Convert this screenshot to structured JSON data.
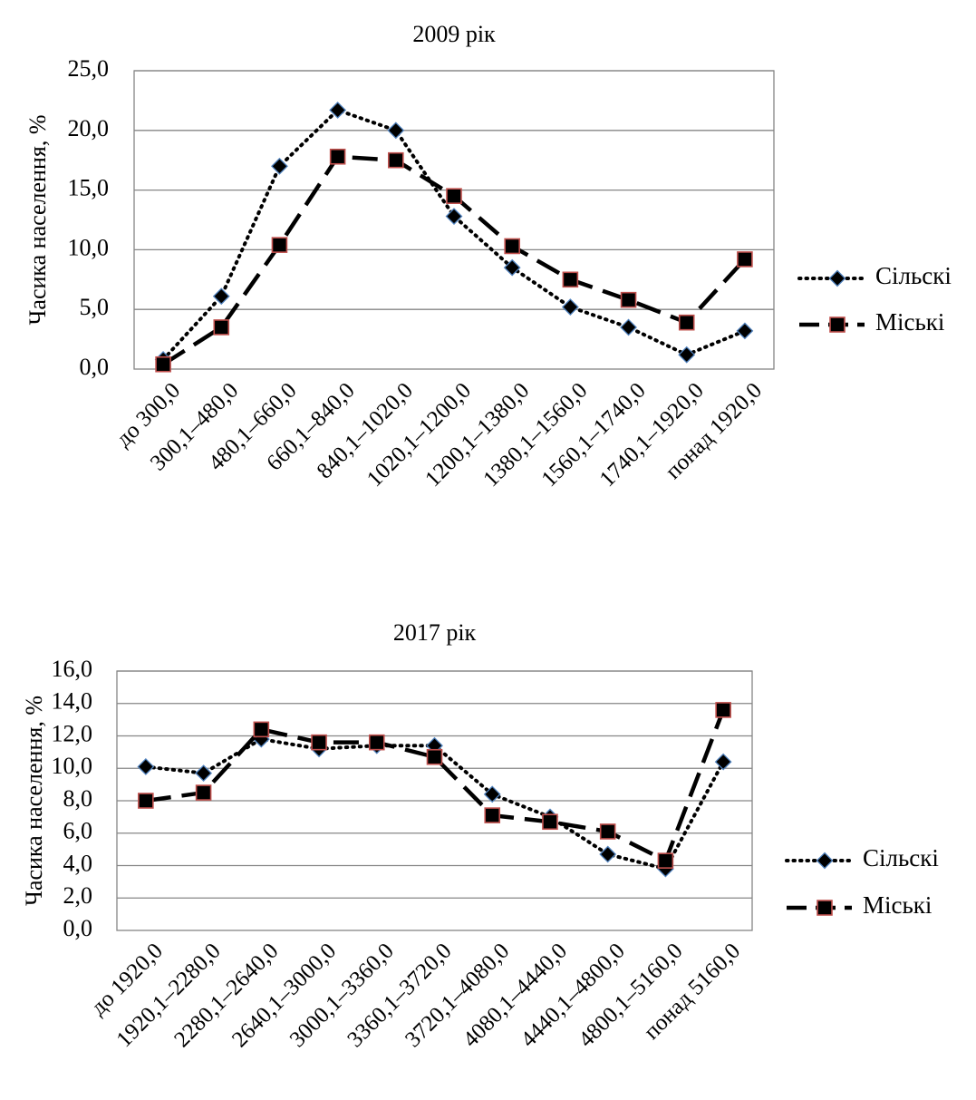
{
  "chart_data": [
    {
      "type": "line",
      "title": "2009 рік",
      "ylabel": "Часика населення, %",
      "xlabel": "",
      "ylim": [
        0,
        25
      ],
      "yticks": [
        "0,0",
        "5,0",
        "10,0",
        "15,0",
        "20,0",
        "25,0"
      ],
      "grid": true,
      "legend": "right",
      "categories": [
        "до 300,0",
        "300,1–480,0",
        "480,1–660,0",
        "660,1–840,0",
        "840,1–1020,0",
        "1020,1–1200,0",
        "1200,1–1380,0",
        "1380,1–1560,0",
        "1560,1–1740,0",
        "1740,1–1920,0",
        "понад 1920,0"
      ],
      "series": [
        {
          "name": "Сільскі",
          "values": [
            0.8,
            6.1,
            17.0,
            21.7,
            20.0,
            12.8,
            8.5,
            5.2,
            3.5,
            1.2,
            3.2
          ]
        },
        {
          "name": "Міські",
          "values": [
            0.4,
            3.5,
            10.4,
            17.8,
            17.5,
            14.5,
            10.3,
            7.5,
            5.8,
            3.9,
            9.2
          ]
        }
      ]
    },
    {
      "type": "line",
      "title": "2017 рік",
      "ylabel": "Часика населення, %",
      "xlabel": "",
      "ylim": [
        0,
        16
      ],
      "yticks": [
        "0,0",
        "2,0",
        "4,0",
        "6,0",
        "8,0",
        "10,0",
        "12,0",
        "14,0",
        "16,0"
      ],
      "grid": true,
      "legend": "right",
      "categories": [
        "до 1920,0",
        "1920,1–2280,0",
        "2280,1–2640,0",
        "2640,1–3000,0",
        "3000,1–3360,0",
        "3360,1–3720,0",
        "3720,1–4080,0",
        "4080,1–4440,0",
        "4440,1–4800,0",
        "4800,1–5160,0",
        "понад 5160,0"
      ],
      "series": [
        {
          "name": "Сільскі",
          "values": [
            10.1,
            9.7,
            11.8,
            11.2,
            11.4,
            11.4,
            8.4,
            7.0,
            4.7,
            3.8,
            10.4
          ]
        },
        {
          "name": "Міські",
          "values": [
            8.0,
            8.5,
            12.4,
            11.6,
            11.6,
            10.7,
            7.1,
            6.7,
            6.1,
            4.3,
            13.6
          ]
        }
      ]
    }
  ],
  "colors": {
    "grid": "#868686",
    "line": "#000000",
    "diamond_fill": "#000000",
    "diamond_stroke": "#4f81bd",
    "square_fill": "#000000",
    "square_stroke": "#c0504d"
  }
}
